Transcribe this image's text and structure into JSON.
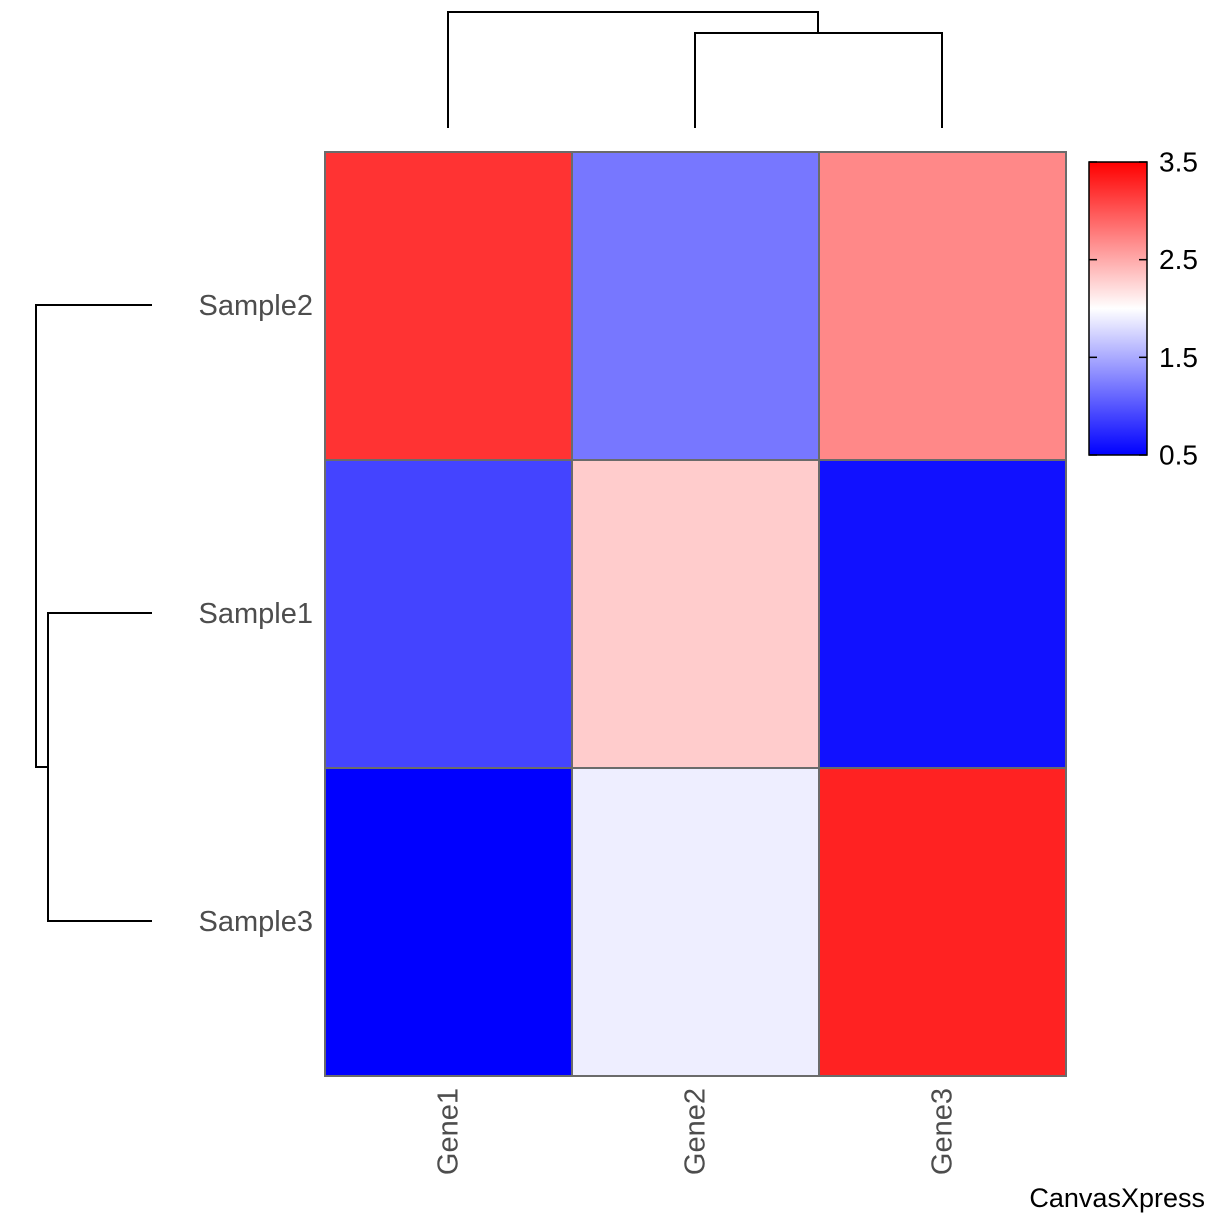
{
  "brand": "CanvasXpress",
  "chart_data": {
    "type": "heatmap",
    "rows": [
      "Sample2",
      "Sample1",
      "Sample3"
    ],
    "columns": [
      "Gene1",
      "Gene2",
      "Gene3"
    ],
    "values": [
      [
        3.2,
        1.2,
        2.7
      ],
      [
        0.9,
        2.3,
        0.6
      ],
      [
        0.5,
        1.9,
        3.3
      ]
    ],
    "color_scale": {
      "min": 0.5,
      "max": 3.5,
      "low_color": "#0000ff",
      "mid_color": "#ffffff",
      "high_color": "#ff0000"
    },
    "legend_ticks": [
      3.5,
      2.5,
      1.5,
      0.5
    ],
    "legend_placement": "right",
    "row_dendrogram": "Sample2 | (Sample1, Sample3)",
    "column_dendrogram": "Gene1 | (Gene2, Gene3)"
  }
}
